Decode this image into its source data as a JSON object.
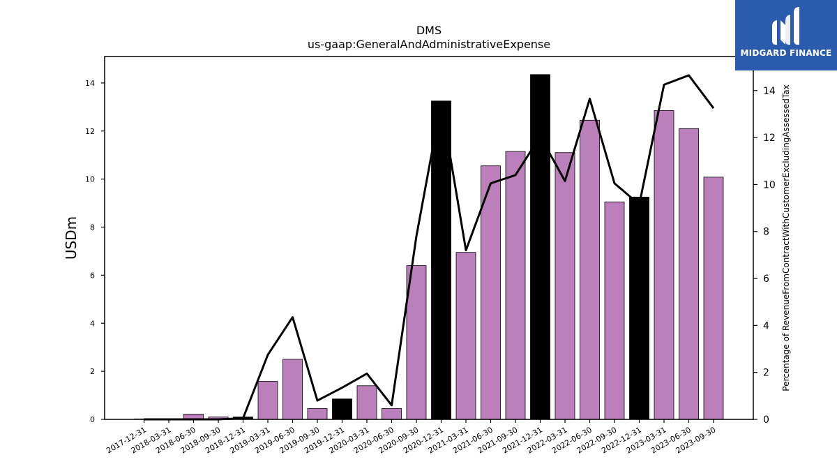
{
  "chart_data": {
    "type": "bar",
    "title": "DMS",
    "subtitle": "us-gaap:GeneralAndAdministrativeExpense",
    "ylabel": "USDm",
    "y2label": "Percentage of RevenueFromContractWithCustomerExcludingAssessedTax",
    "ylim": [
      0,
      15.1
    ],
    "y2lim": [
      0,
      15.45
    ],
    "yticks": [
      0,
      2,
      4,
      6,
      8,
      10,
      12,
      14
    ],
    "y2ticks": [
      0,
      2,
      4,
      6,
      8,
      10,
      12,
      14
    ],
    "categories": [
      "2017-12-31",
      "2018-03-31",
      "2018-06-30",
      "2018-09-30",
      "2018-12-31",
      "2019-03-31",
      "2019-06-30",
      "2019-09-30",
      "2019-12-31",
      "2020-03-31",
      "2020-06-30",
      "2020-09-30",
      "2020-12-31",
      "2021-03-31",
      "2021-06-30",
      "2021-09-30",
      "2021-12-31",
      "2022-03-31",
      "2022-06-30",
      "2022-09-30",
      "2022-12-31",
      "2023-03-31",
      "2023-06-30",
      "2023-09-30"
    ],
    "series": [
      {
        "values": [
          0.02,
          0.03,
          0.22,
          0.1,
          0.1,
          1.58,
          2.5,
          0.45,
          0.85,
          1.4,
          0.45,
          6.4,
          13.25,
          6.95,
          10.55,
          11.15,
          14.35,
          11.1,
          12.45,
          9.05,
          9.25,
          12.85,
          12.1,
          10.08
        ]
      },
      {
        "values": [
          0,
          0,
          0,
          0,
          0.05,
          2.75,
          4.35,
          0.8,
          1.35,
          1.95,
          0.6,
          7.8,
          13.5,
          7.2,
          10.05,
          10.4,
          12.05,
          10.15,
          13.65,
          10.05,
          9.15,
          14.25,
          14.65,
          13.25
        ]
      }
    ],
    "bar_colors": [
      "#bb80bb",
      "#bb80bb",
      "#bb80bb",
      "#bb80bb",
      "#000000",
      "#bb80bb",
      "#bb80bb",
      "#bb80bb",
      "#000000",
      "#bb80bb",
      "#bb80bb",
      "#bb80bb",
      "#000000",
      "#bb80bb",
      "#bb80bb",
      "#bb80bb",
      "#000000",
      "#bb80bb",
      "#bb80bb",
      "#bb80bb",
      "#000000",
      "#bb80bb",
      "#bb80bb",
      "#bb80bb"
    ],
    "line_color": "#000000",
    "grid": false,
    "legend": "none"
  },
  "logo": {
    "text": "MIDGARD FINANCE",
    "background": "#2b5bad",
    "icon": "midgard-logo-icon"
  }
}
